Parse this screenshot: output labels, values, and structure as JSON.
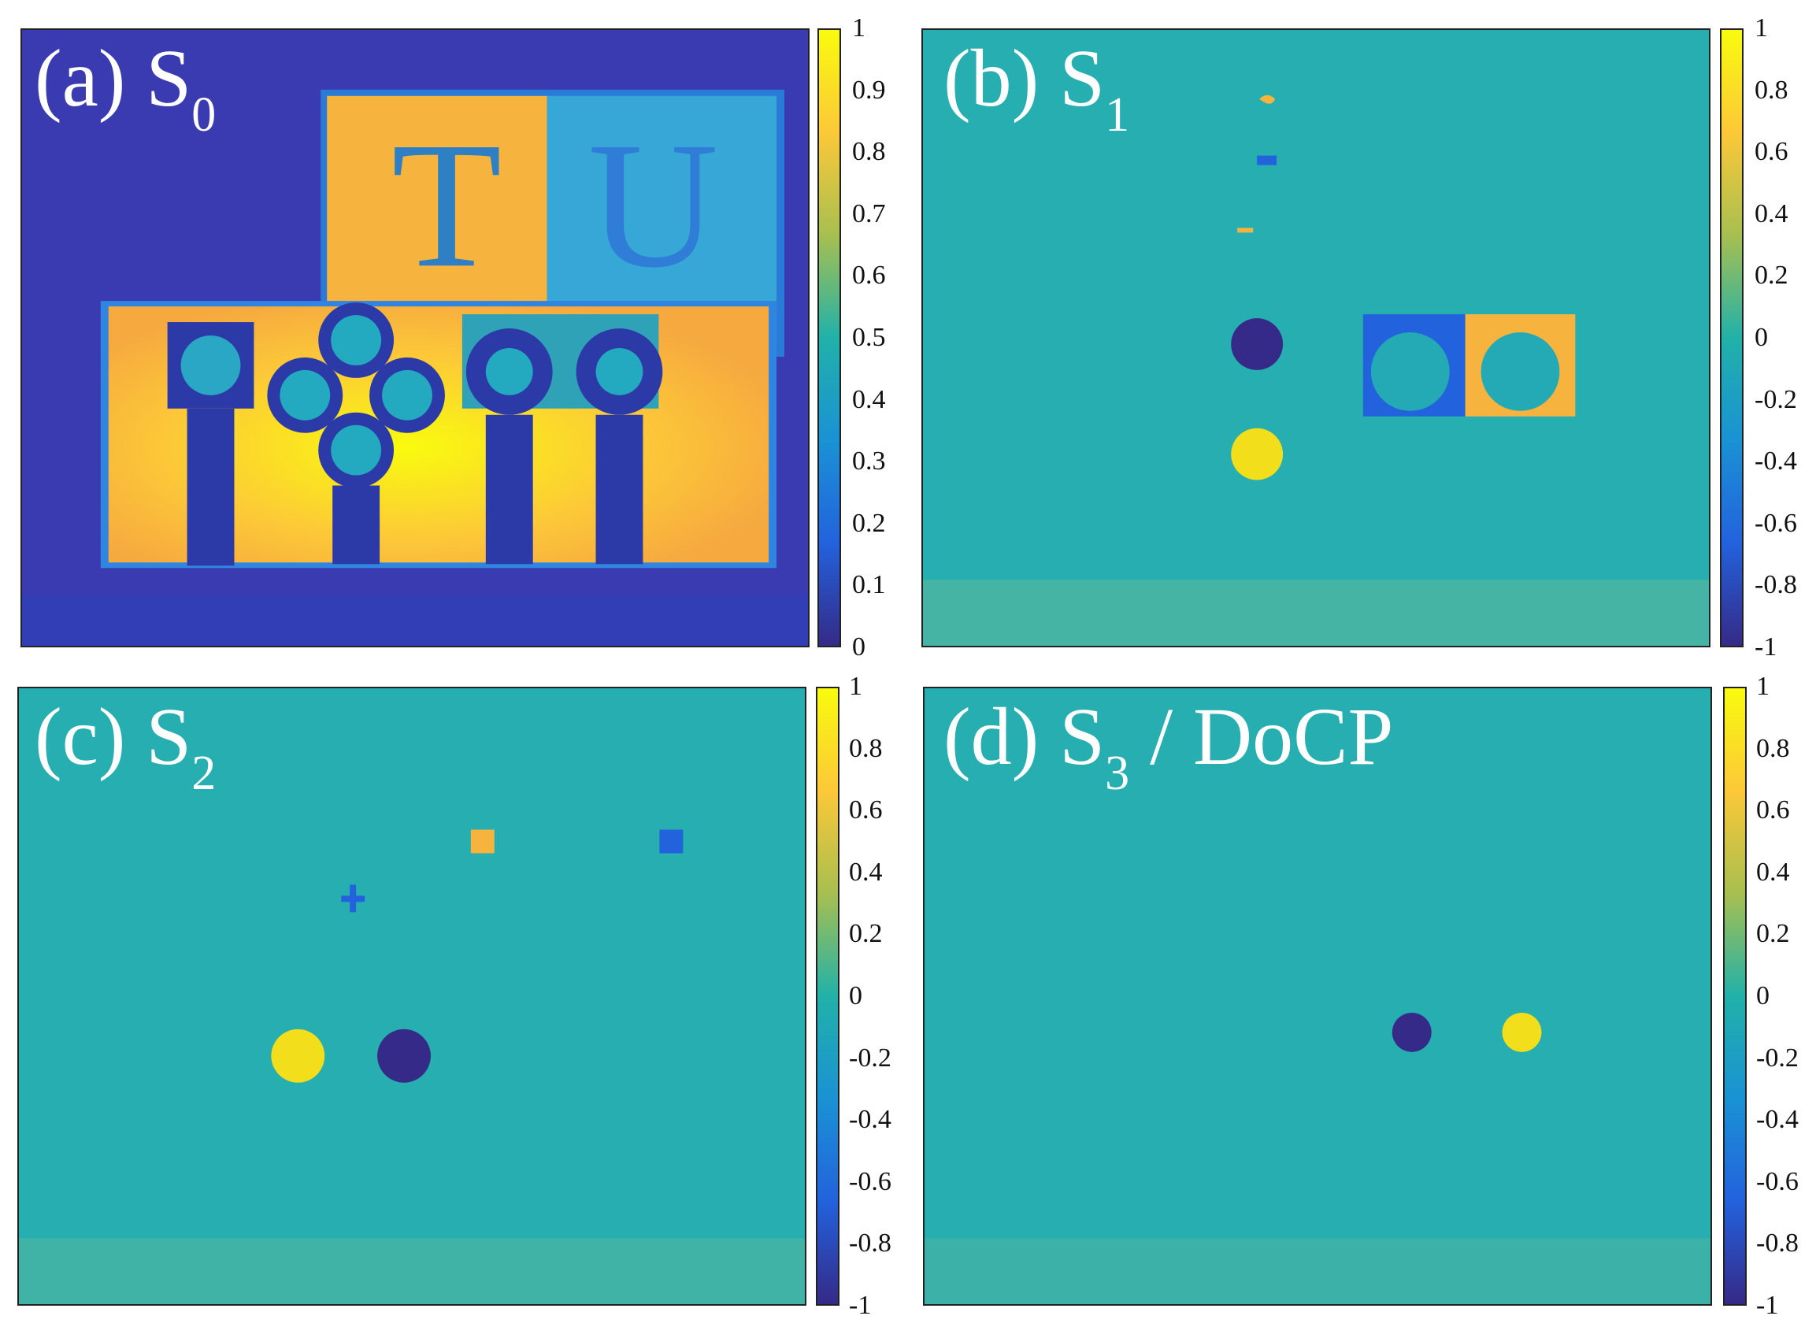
{
  "panels": [
    {
      "id": "a",
      "label_prefix": "(a) S",
      "label_sub": "0",
      "label_suffix": "",
      "ticks": [
        "1",
        "0.9",
        "0.8",
        "0.7",
        "0.6",
        "0.5",
        "0.4",
        "0.3",
        "0.2",
        "0.1",
        "0"
      ]
    },
    {
      "id": "b",
      "label_prefix": "(b) S",
      "label_sub": "1",
      "label_suffix": "",
      "ticks": [
        "1",
        "0.8",
        "0.6",
        "0.4",
        "0.2",
        "0",
        "-0.2",
        "-0.4",
        "-0.6",
        "-0.8",
        "-1"
      ]
    },
    {
      "id": "c",
      "label_prefix": "(c) S",
      "label_sub": "2",
      "label_suffix": "",
      "ticks": [
        "1",
        "0.8",
        "0.6",
        "0.4",
        "0.2",
        "0",
        "-0.2",
        "-0.4",
        "-0.6",
        "-0.8",
        "-1"
      ]
    },
    {
      "id": "d",
      "label_prefix": "(d) S",
      "label_sub": "3",
      "label_suffix": " / DoCP",
      "ticks": [
        "1",
        "0.8",
        "0.6",
        "0.4",
        "0.2",
        "0",
        "-0.2",
        "-0.4",
        "-0.6",
        "-0.8",
        "-1"
      ]
    }
  ],
  "colormap": "parula",
  "colors": {
    "low": "#352a87",
    "mid": "#21b1a9",
    "high": "#f9fb0e"
  }
}
